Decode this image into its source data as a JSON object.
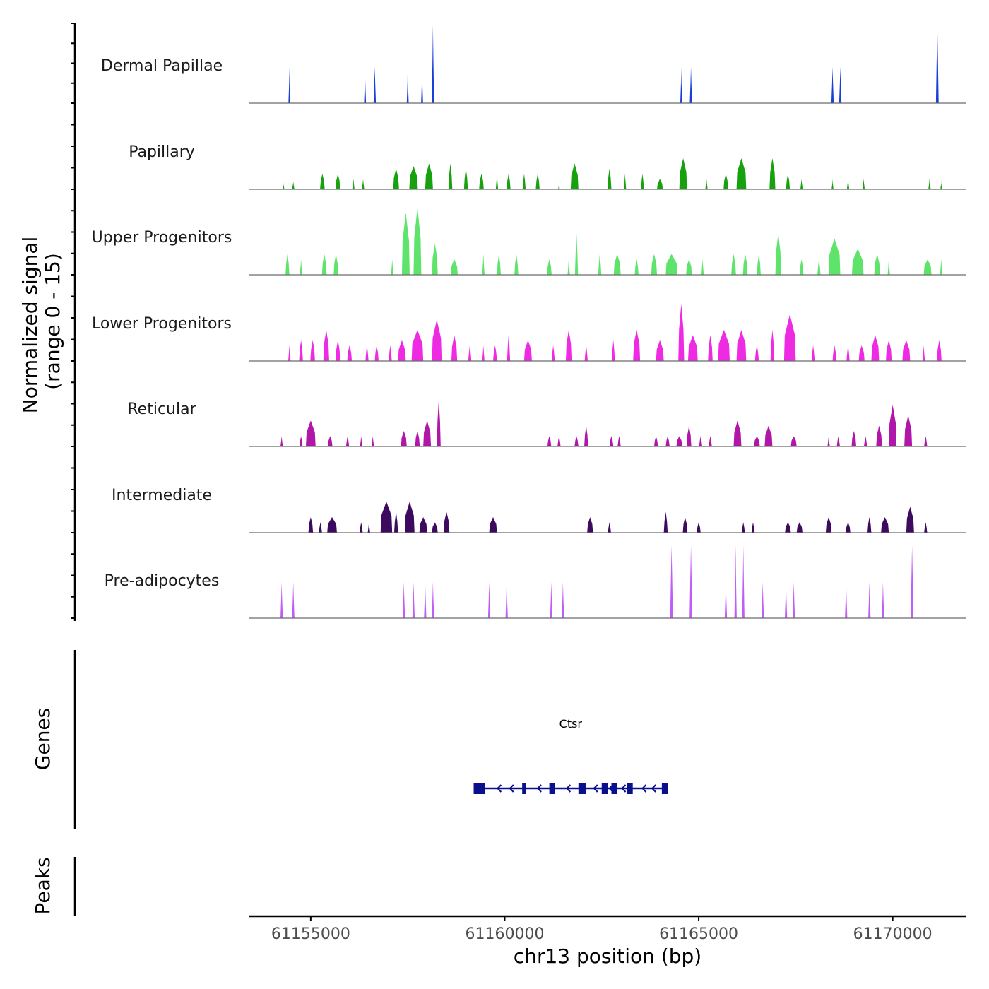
{
  "chart_data": {
    "type": "area",
    "title": "",
    "ylabel": "Normalized signal",
    "ylabel_range": "(range 0 - 15)",
    "ylim": [
      0,
      15
    ],
    "xlabel": "chr13 position (bp)",
    "xlim": [
      61153400,
      61171900
    ],
    "xticks": [
      61155000,
      61160000,
      61165000,
      61170000
    ],
    "xtick_labels": [
      "61155000",
      "61160000",
      "61165000",
      "61170000"
    ],
    "tracks": [
      {
        "name": "Dermal Papillae",
        "color": "#1a3fd6",
        "peaks": [
          [
            61154450,
            50,
            7
          ],
          [
            61156400,
            50,
            7
          ],
          [
            61156650,
            60,
            7
          ],
          [
            61157500,
            50,
            7
          ],
          [
            61157870,
            50,
            7
          ],
          [
            61158150,
            60,
            15
          ],
          [
            61164550,
            50,
            7
          ],
          [
            61164800,
            60,
            7
          ],
          [
            61168450,
            60,
            7
          ],
          [
            61168650,
            60,
            7
          ],
          [
            61171150,
            70,
            15
          ]
        ]
      },
      {
        "name": "Papillary",
        "color": "#18a10e",
        "peaks": [
          [
            61154300,
            40,
            1.5
          ],
          [
            61154550,
            60,
            1.5
          ],
          [
            61155300,
            120,
            3
          ],
          [
            61155700,
            120,
            3
          ],
          [
            61156100,
            60,
            2
          ],
          [
            61156350,
            60,
            2
          ],
          [
            61157200,
            150,
            4
          ],
          [
            61157650,
            220,
            4.5
          ],
          [
            61158050,
            200,
            5
          ],
          [
            61158600,
            100,
            5
          ],
          [
            61159000,
            100,
            4
          ],
          [
            61159400,
            120,
            3
          ],
          [
            61159800,
            60,
            3
          ],
          [
            61160100,
            100,
            3
          ],
          [
            61160500,
            80,
            3
          ],
          [
            61160850,
            100,
            3
          ],
          [
            61161400,
            40,
            2
          ],
          [
            61161800,
            200,
            5
          ],
          [
            61162700,
            100,
            4
          ],
          [
            61163100,
            60,
            3
          ],
          [
            61163550,
            80,
            3
          ],
          [
            61164000,
            150,
            2
          ],
          [
            61164600,
            200,
            6
          ],
          [
            61165200,
            60,
            2
          ],
          [
            61165700,
            120,
            3
          ],
          [
            61166100,
            250,
            6
          ],
          [
            61166900,
            150,
            6
          ],
          [
            61167300,
            100,
            3
          ],
          [
            61167650,
            60,
            2
          ],
          [
            61168450,
            50,
            2
          ],
          [
            61168850,
            60,
            2
          ],
          [
            61169250,
            60,
            2
          ],
          [
            61170950,
            60,
            2
          ],
          [
            61171250,
            40,
            2
          ]
        ]
      },
      {
        "name": "Upper Progenitors",
        "color": "#5ee46b",
        "peaks": [
          [
            61154400,
            100,
            4
          ],
          [
            61154750,
            60,
            3
          ],
          [
            61155350,
            120,
            4
          ],
          [
            61155650,
            120,
            4
          ],
          [
            61157100,
            60,
            3
          ],
          [
            61157450,
            200,
            12
          ],
          [
            61157750,
            200,
            13
          ],
          [
            61158200,
            150,
            6
          ],
          [
            61158700,
            180,
            3
          ],
          [
            61159450,
            60,
            4
          ],
          [
            61159850,
            100,
            4
          ],
          [
            61160300,
            100,
            4
          ],
          [
            61161150,
            120,
            3
          ],
          [
            61161650,
            60,
            3
          ],
          [
            61161850,
            80,
            8
          ],
          [
            61162450,
            80,
            4
          ],
          [
            61162900,
            180,
            4
          ],
          [
            61163400,
            100,
            3
          ],
          [
            61163850,
            150,
            4
          ],
          [
            61164300,
            300,
            4
          ],
          [
            61164750,
            150,
            3
          ],
          [
            61165100,
            60,
            3
          ],
          [
            61165900,
            120,
            4
          ],
          [
            61166200,
            120,
            4
          ],
          [
            61166550,
            100,
            4
          ],
          [
            61167050,
            150,
            8
          ],
          [
            61167650,
            100,
            3
          ],
          [
            61168100,
            80,
            3
          ],
          [
            61168500,
            300,
            7
          ],
          [
            61169100,
            300,
            5
          ],
          [
            61169600,
            150,
            4
          ],
          [
            61169900,
            60,
            3
          ],
          [
            61170900,
            200,
            3
          ],
          [
            61171250,
            60,
            3
          ]
        ]
      },
      {
        "name": "Lower Progenitors",
        "color": "#ee2ae3",
        "peaks": [
          [
            61154450,
            60,
            3
          ],
          [
            61154750,
            100,
            4
          ],
          [
            61155050,
            120,
            4
          ],
          [
            61155400,
            150,
            6
          ],
          [
            61155700,
            120,
            4
          ],
          [
            61156000,
            120,
            3
          ],
          [
            61156450,
            80,
            3
          ],
          [
            61156700,
            100,
            3
          ],
          [
            61157050,
            80,
            3
          ],
          [
            61157350,
            200,
            4
          ],
          [
            61157750,
            300,
            6
          ],
          [
            61158250,
            250,
            8
          ],
          [
            61158700,
            150,
            5
          ],
          [
            61159100,
            80,
            3
          ],
          [
            61159450,
            60,
            3
          ],
          [
            61159750,
            100,
            3
          ],
          [
            61160100,
            80,
            5
          ],
          [
            61160600,
            200,
            4
          ],
          [
            61161250,
            80,
            3
          ],
          [
            61161650,
            150,
            6
          ],
          [
            61162100,
            80,
            3
          ],
          [
            61162800,
            80,
            4
          ],
          [
            61163400,
            180,
            6
          ],
          [
            61164000,
            200,
            4
          ],
          [
            61164550,
            150,
            11
          ],
          [
            61164850,
            250,
            5
          ],
          [
            61165300,
            120,
            5
          ],
          [
            61165650,
            300,
            6
          ],
          [
            61166100,
            250,
            6
          ],
          [
            61166500,
            100,
            3
          ],
          [
            61166900,
            100,
            6
          ],
          [
            61167350,
            300,
            9
          ],
          [
            61167950,
            80,
            3
          ],
          [
            61168500,
            100,
            3
          ],
          [
            61168850,
            80,
            3
          ],
          [
            61169200,
            150,
            3
          ],
          [
            61169550,
            200,
            5
          ],
          [
            61169900,
            150,
            4
          ],
          [
            61170350,
            200,
            4
          ],
          [
            61170800,
            60,
            3
          ],
          [
            61171200,
            120,
            4
          ]
        ]
      },
      {
        "name": "Reticular",
        "color": "#b016a7",
        "peaks": [
          [
            61154250,
            60,
            2
          ],
          [
            61154750,
            80,
            2
          ],
          [
            61155000,
            250,
            5
          ],
          [
            61155500,
            120,
            2
          ],
          [
            61155950,
            80,
            2
          ],
          [
            61156300,
            60,
            2
          ],
          [
            61156600,
            60,
            2
          ],
          [
            61157400,
            150,
            3
          ],
          [
            61157750,
            120,
            3
          ],
          [
            61158000,
            200,
            5
          ],
          [
            61158300,
            100,
            9
          ],
          [
            61161150,
            100,
            2
          ],
          [
            61161400,
            80,
            2
          ],
          [
            61161850,
            100,
            2
          ],
          [
            61162100,
            100,
            4
          ],
          [
            61162750,
            100,
            2
          ],
          [
            61162950,
            80,
            2
          ],
          [
            61163900,
            100,
            2
          ],
          [
            61164200,
            100,
            2
          ],
          [
            61164500,
            150,
            2
          ],
          [
            61164750,
            120,
            4
          ],
          [
            61165050,
            80,
            2
          ],
          [
            61165300,
            80,
            2
          ],
          [
            61166000,
            200,
            5
          ],
          [
            61166500,
            150,
            2
          ],
          [
            61166800,
            200,
            4
          ],
          [
            61167450,
            150,
            2
          ],
          [
            61168350,
            60,
            2
          ],
          [
            61168600,
            80,
            2
          ],
          [
            61169000,
            120,
            3
          ],
          [
            61169300,
            80,
            2
          ],
          [
            61169650,
            150,
            4
          ],
          [
            61170000,
            200,
            8
          ],
          [
            61170400,
            200,
            6
          ],
          [
            61170850,
            80,
            2
          ]
        ]
      },
      {
        "name": "Intermediate",
        "color": "#3c0a5e",
        "peaks": [
          [
            61155000,
            120,
            3
          ],
          [
            61155250,
            80,
            2
          ],
          [
            61155550,
            250,
            3
          ],
          [
            61156300,
            80,
            2
          ],
          [
            61156500,
            60,
            2
          ],
          [
            61156950,
            300,
            6
          ],
          [
            61157200,
            100,
            4
          ],
          [
            61157550,
            250,
            6
          ],
          [
            61157900,
            200,
            3
          ],
          [
            61158200,
            150,
            2
          ],
          [
            61158500,
            150,
            4
          ],
          [
            61159700,
            200,
            3
          ],
          [
            61162200,
            150,
            3
          ],
          [
            61162700,
            80,
            2
          ],
          [
            61164150,
            100,
            4
          ],
          [
            61164650,
            120,
            3
          ],
          [
            61165000,
            100,
            2
          ],
          [
            61166150,
            80,
            2
          ],
          [
            61166400,
            80,
            2
          ],
          [
            61167300,
            150,
            2
          ],
          [
            61167600,
            150,
            2
          ],
          [
            61168350,
            150,
            3
          ],
          [
            61168850,
            120,
            2
          ],
          [
            61169400,
            100,
            3
          ],
          [
            61169800,
            200,
            3
          ],
          [
            61170450,
            200,
            5
          ],
          [
            61170850,
            80,
            2
          ]
        ]
      },
      {
        "name": "Pre-adipocytes",
        "color": "#c05cf8",
        "peaks": [
          [
            61154250,
            60,
            7
          ],
          [
            61154550,
            60,
            7
          ],
          [
            61157400,
            60,
            7
          ],
          [
            61157650,
            60,
            7
          ],
          [
            61157950,
            60,
            7
          ],
          [
            61158150,
            60,
            7
          ],
          [
            61159600,
            60,
            7
          ],
          [
            61160050,
            60,
            7
          ],
          [
            61161200,
            60,
            7
          ],
          [
            61161500,
            60,
            7
          ],
          [
            61164300,
            70,
            14
          ],
          [
            61164800,
            70,
            14
          ],
          [
            61165700,
            60,
            7
          ],
          [
            61165950,
            60,
            14
          ],
          [
            61166150,
            60,
            14
          ],
          [
            61166650,
            60,
            7
          ],
          [
            61167250,
            60,
            7
          ],
          [
            61167450,
            60,
            7
          ],
          [
            61168800,
            60,
            7
          ],
          [
            61169400,
            60,
            7
          ],
          [
            61169750,
            60,
            7
          ],
          [
            61170500,
            70,
            14
          ]
        ]
      }
    ],
    "genes": [
      {
        "name": "Ctsr",
        "strand": "-",
        "start": 61159200,
        "end": 61164200,
        "color": "#0a0f8c",
        "exons": [
          [
            61159200,
            61159500
          ],
          [
            61160450,
            61160550
          ],
          [
            61161150,
            61161300
          ],
          [
            61161900,
            61162100
          ],
          [
            61162500,
            61162650
          ],
          [
            61162750,
            61162900
          ],
          [
            61163150,
            61163300
          ],
          [
            61164050,
            61164200
          ]
        ]
      }
    ],
    "panel_labels": {
      "genes": "Genes",
      "peaks": "Peaks"
    },
    "peaks_track": []
  }
}
